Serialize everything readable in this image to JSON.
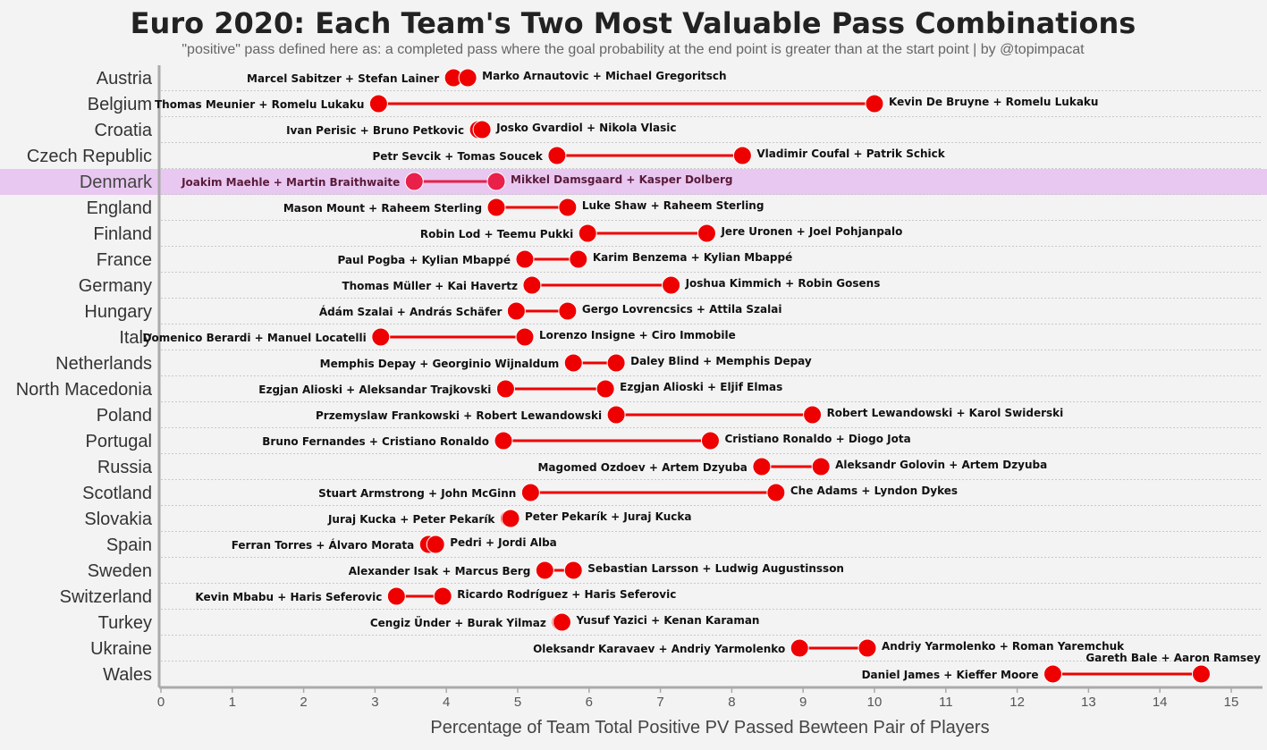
{
  "chart_data": {
    "type": "dumbbell",
    "title": "Euro 2020: Each Team's Two Most Valuable Pass Combinations",
    "subtitle": "\"positive\" pass defined here as: a completed pass where the goal probability at the end point is greater than at the start point | by @topimpacat",
    "xlabel": "Percentage of Team Total Positive PV Passed Bewteen Pair of Players",
    "xlim": [
      0,
      15.4
    ],
    "xticks": [
      0,
      1,
      2,
      3,
      4,
      5,
      6,
      7,
      8,
      9,
      10,
      11,
      12,
      13,
      14,
      15
    ],
    "highlight": "Denmark",
    "colors": {
      "point": "#ee0000",
      "line": "#dd0000",
      "highlight_band": "#e8c8f0",
      "highlight_point": "#e8204a"
    },
    "teams": [
      {
        "team": "Austria",
        "low": {
          "pair": "Marcel Sabitzer + Stefan Lainer",
          "value": 4.1
        },
        "high": {
          "pair": "Marko Arnautovic + Michael Gregoritsch",
          "value": 4.3
        }
      },
      {
        "team": "Belgium",
        "low": {
          "pair": "Thomas Meunier + Romelu Lukaku",
          "value": 3.05
        },
        "high": {
          "pair": "Kevin De Bruyne + Romelu Lukaku",
          "value": 10.0
        }
      },
      {
        "team": "Croatia",
        "low": {
          "pair": "Ivan Perisic + Bruno Petkovic",
          "value": 4.45
        },
        "high": {
          "pair": "Josko Gvardiol + Nikola Vlasic",
          "value": 4.5
        }
      },
      {
        "team": "Czech Republic",
        "low": {
          "pair": "Petr Sevcik + Tomas Soucek",
          "value": 5.55
        },
        "high": {
          "pair": "Vladimir Coufal + Patrik Schick",
          "value": 8.15
        }
      },
      {
        "team": "Denmark",
        "low": {
          "pair": "Joakim Maehle + Martin Braithwaite",
          "value": 3.55
        },
        "high": {
          "pair": "Mikkel Damsgaard + Kasper Dolberg",
          "value": 4.7
        }
      },
      {
        "team": "England",
        "low": {
          "pair": "Mason Mount + Raheem Sterling",
          "value": 4.7
        },
        "high": {
          "pair": "Luke Shaw + Raheem Sterling",
          "value": 5.7
        }
      },
      {
        "team": "Finland",
        "low": {
          "pair": "Robin Lod + Teemu Pukki",
          "value": 5.98
        },
        "high": {
          "pair": "Jere Uronen + Joel Pohjanpalo",
          "value": 7.65
        }
      },
      {
        "team": "France",
        "low": {
          "pair": "Paul Pogba + Kylian Mbappé",
          "value": 5.1
        },
        "high": {
          "pair": "Karim Benzema + Kylian Mbappé",
          "value": 5.85
        }
      },
      {
        "team": "Germany",
        "low": {
          "pair": "Thomas Müller + Kai Havertz",
          "value": 5.2
        },
        "high": {
          "pair": "Joshua Kimmich + Robin Gosens",
          "value": 7.15
        }
      },
      {
        "team": "Hungary",
        "low": {
          "pair": "Ádám Szalai + András Schäfer",
          "value": 4.98
        },
        "high": {
          "pair": "Gergo Lovrencsics + Attila Szalai",
          "value": 5.7
        }
      },
      {
        "team": "Italy",
        "low": {
          "pair": "Domenico Berardi + Manuel Locatelli",
          "value": 3.08
        },
        "high": {
          "pair": "Lorenzo Insigne + Ciro Immobile",
          "value": 5.1
        }
      },
      {
        "team": "Netherlands",
        "low": {
          "pair": "Memphis Depay + Georginio Wijnaldum",
          "value": 5.78
        },
        "high": {
          "pair": "Daley Blind + Memphis Depay",
          "value": 6.38
        }
      },
      {
        "team": "North Macedonia",
        "low": {
          "pair": "Ezgjan Alioski + Aleksandar Trajkovski",
          "value": 4.83
        },
        "high": {
          "pair": "Ezgjan Alioski + Eljif Elmas",
          "value": 6.23
        }
      },
      {
        "team": "Poland",
        "low": {
          "pair": "Przemyslaw Frankowski + Robert Lewandowski",
          "value": 6.38
        },
        "high": {
          "pair": "Robert Lewandowski + Karol Swiderski",
          "value": 9.13
        }
      },
      {
        "team": "Portugal",
        "low": {
          "pair": "Bruno Fernandes + Cristiano Ronaldo",
          "value": 4.8
        },
        "high": {
          "pair": "Cristiano Ronaldo + Diogo Jota",
          "value": 7.7
        }
      },
      {
        "team": "Russia",
        "low": {
          "pair": "Magomed Ozdoev + Artem Dzyuba",
          "value": 8.42
        },
        "high": {
          "pair": "Aleksandr Golovin + Artem Dzyuba",
          "value": 9.25
        }
      },
      {
        "team": "Scotland",
        "low": {
          "pair": "Stuart Armstrong + John McGinn",
          "value": 5.18
        },
        "high": {
          "pair": "Che Adams + Lyndon Dykes",
          "value": 8.62
        }
      },
      {
        "team": "Slovakia",
        "low": {
          "pair": "Juraj Kucka + Peter Pekarík",
          "value": 4.88
        },
        "high": {
          "pair": "Peter Pekarík + Juraj Kucka",
          "value": 4.9
        }
      },
      {
        "team": "Spain",
        "low": {
          "pair": "Ferran Torres + Álvaro Morata",
          "value": 3.75
        },
        "high": {
          "pair": "Pedri + Jordi Alba",
          "value": 3.85
        }
      },
      {
        "team": "Sweden",
        "low": {
          "pair": "Alexander Isak + Marcus Berg",
          "value": 5.38
        },
        "high": {
          "pair": "Sebastian Larsson + Ludwig Augustinsson",
          "value": 5.78
        }
      },
      {
        "team": "Switzerland",
        "low": {
          "pair": "Kevin Mbabu + Haris Seferovic",
          "value": 3.3
        },
        "high": {
          "pair": "Ricardo Rodríguez + Haris Seferovic",
          "value": 3.95
        }
      },
      {
        "team": "Turkey",
        "low": {
          "pair": "Cengiz Ünder + Burak Yilmaz",
          "value": 5.6
        },
        "high": {
          "pair": "Yusuf Yazici + Kenan Karaman",
          "value": 5.62
        }
      },
      {
        "team": "Ukraine",
        "low": {
          "pair": "Oleksandr Karavaev + Andriy Yarmolenko",
          "value": 8.95
        },
        "high": {
          "pair": "Andriy Yarmolenko + Roman Yaremchuk",
          "value": 9.9
        }
      },
      {
        "team": "Wales",
        "low": {
          "pair": "Daniel James + Kieffer Moore",
          "value": 12.5
        },
        "high": {
          "pair": "Gareth Bale + Aaron Ramsey",
          "value": 14.58
        }
      }
    ]
  }
}
